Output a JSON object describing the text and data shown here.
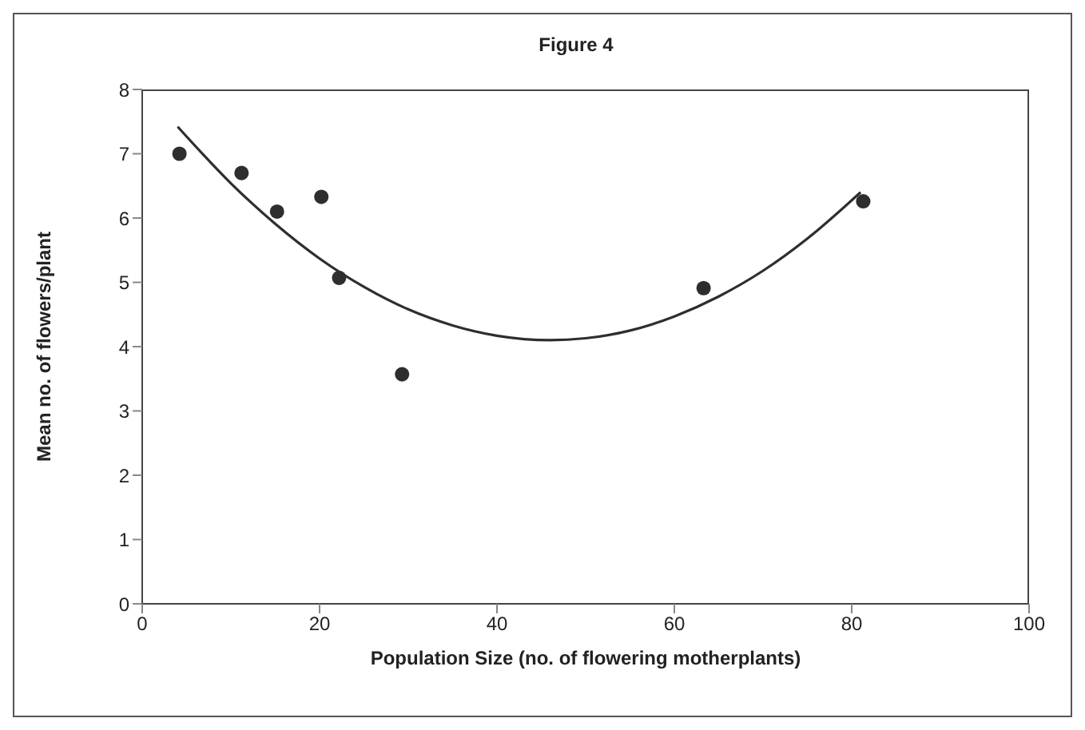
{
  "chart_data": {
    "type": "scatter",
    "title": "Figure 4",
    "xlabel": "Population Size (no. of flowering motherplants)",
    "ylabel": "Mean no. of flowers/plant",
    "xlim": [
      0,
      100
    ],
    "xticks": [
      0,
      20,
      40,
      60,
      80,
      100
    ],
    "ylim": [
      0,
      8
    ],
    "yticks": [
      0,
      1,
      2,
      3,
      4,
      5,
      6,
      7,
      8
    ],
    "grid": false,
    "series": [
      {
        "type": "scatter",
        "color": "#2e2e2e",
        "marker": "circle",
        "x": [
          4.2,
          11.2,
          15.2,
          20.2,
          22.2,
          29.3,
          63.3,
          81.3
        ],
        "values": [
          7.0,
          6.7,
          6.1,
          6.33,
          5.07,
          3.57,
          4.91,
          6.26
        ]
      },
      {
        "type": "line",
        "color": "#2e2e2e",
        "marker": "none",
        "line_style": "solid",
        "x": [
          4,
          10,
          15,
          20,
          25,
          30,
          35,
          40,
          46,
          50,
          55,
          60,
          65,
          70,
          75,
          81
        ],
        "values": [
          7.42,
          6.54,
          5.91,
          5.37,
          4.93,
          4.58,
          4.33,
          4.17,
          4.1,
          4.13,
          4.25,
          4.47,
          4.78,
          5.18,
          5.68,
          6.4
        ]
      }
    ]
  }
}
